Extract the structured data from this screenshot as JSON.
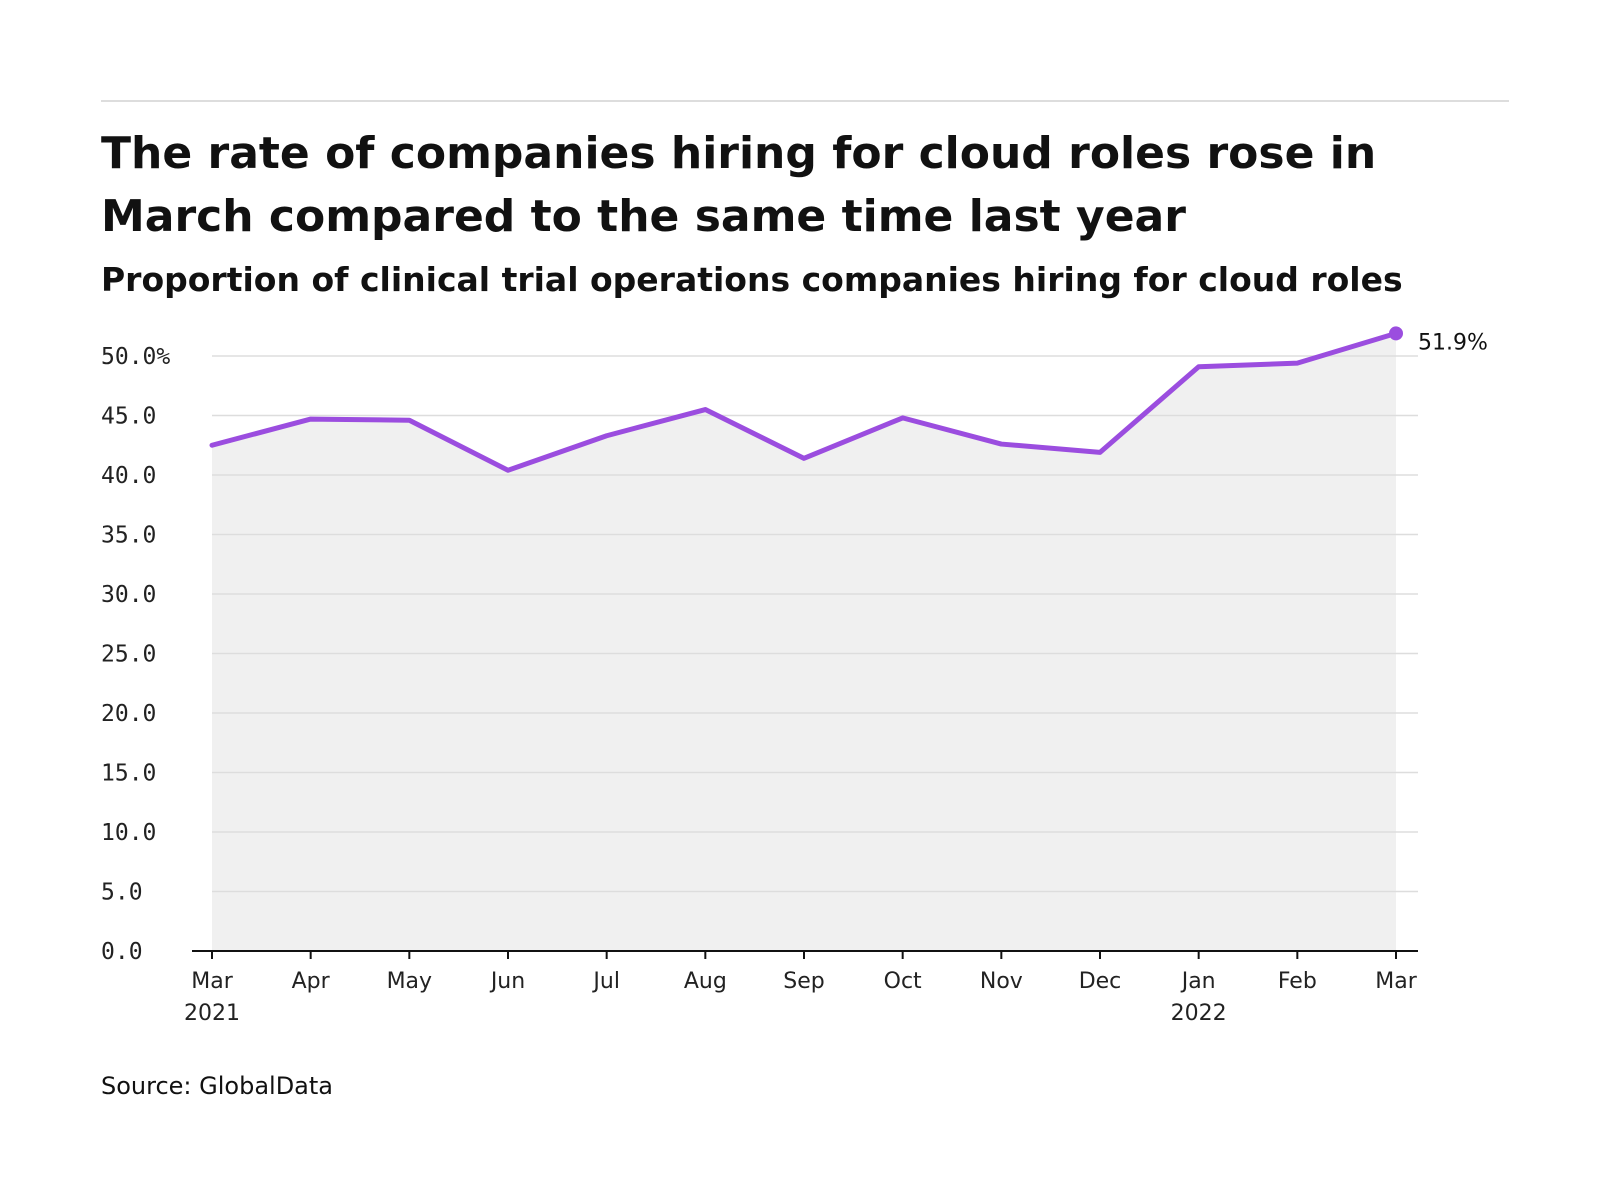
{
  "header": {
    "title": "The rate of companies hiring for cloud roles rose in March compared to the same time last year",
    "subtitle": "Proportion of clinical trial operations companies hiring for cloud roles"
  },
  "footer": {
    "source": "Source: GlobalData"
  },
  "colors": {
    "line": "#9b4ddf",
    "area": "#f0f0f0",
    "grid": "#dddddd",
    "axis": "#111111"
  },
  "chart_data": {
    "type": "area",
    "title": "The rate of companies hiring for cloud roles rose in March compared to the same time last year",
    "subtitle": "Proportion of clinical trial operations companies hiring for cloud roles",
    "categories": [
      "Mar 2021",
      "Apr 2021",
      "May 2021",
      "Jun 2021",
      "Jul 2021",
      "Aug 2021",
      "Sep 2021",
      "Oct 2021",
      "Nov 2021",
      "Dec 2021",
      "Jan 2022",
      "Feb 2022",
      "Mar 2022"
    ],
    "x_tick_labels": [
      {
        "month": "Mar",
        "year": "2021"
      },
      {
        "month": "Apr",
        "year": ""
      },
      {
        "month": "May",
        "year": ""
      },
      {
        "month": "Jun",
        "year": ""
      },
      {
        "month": "Jul",
        "year": ""
      },
      {
        "month": "Aug",
        "year": ""
      },
      {
        "month": "Sep",
        "year": ""
      },
      {
        "month": "Oct",
        "year": ""
      },
      {
        "month": "Nov",
        "year": ""
      },
      {
        "month": "Dec",
        "year": ""
      },
      {
        "month": "Jan",
        "year": "2022"
      },
      {
        "month": "Feb",
        "year": ""
      },
      {
        "month": "Mar",
        "year": ""
      }
    ],
    "series": [
      {
        "values": [
          42.5,
          44.7,
          44.6,
          40.4,
          43.3,
          45.5,
          41.4,
          44.8,
          42.6,
          41.9,
          49.1,
          49.4,
          51.9
        ]
      }
    ],
    "y_ticks": [
      0,
      5,
      10,
      15,
      20,
      25,
      30,
      35,
      40,
      45,
      50
    ],
    "y_tick_labels": [
      "0.0",
      "5.0",
      "10.0",
      "15.0",
      "20.0",
      "25.0",
      "30.0",
      "35.0",
      "40.0",
      "45.0",
      "50.0%"
    ],
    "ylim": [
      0,
      50
    ],
    "end_label": "51.9%",
    "grid": true,
    "legend": "none",
    "source": "Source: GlobalData"
  }
}
